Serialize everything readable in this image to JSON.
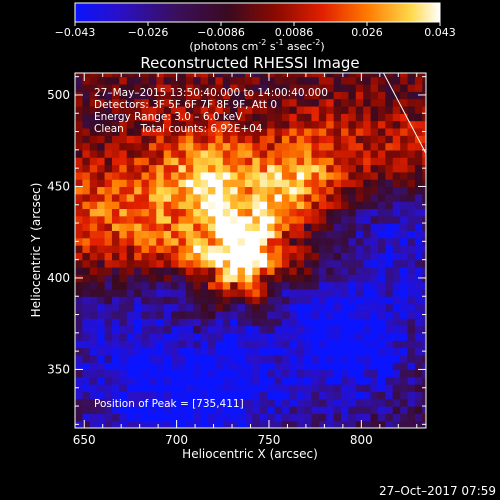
{
  "chart_data": {
    "type": "heatmap",
    "title": "Reconstructed RHESSI Image",
    "xlabel": "Heliocentric X (arcsec)",
    "ylabel": "Heliocentric Y (arcsec)",
    "xlim": [
      645,
      835
    ],
    "ylim": [
      318,
      512
    ],
    "x_ticks": [
      650,
      700,
      750,
      800
    ],
    "y_ticks": [
      350,
      400,
      450,
      500
    ],
    "colorbar": {
      "label_main": "(photons cm",
      "label_exp1": "-2",
      "label_mid": " s",
      "label_exp2": "-1",
      "label_tail": " asec",
      "label_exp3": "-2",
      "label_close": ")",
      "ticks": [
        "−0.043",
        "−0.026",
        "−0.0086",
        "0.0086",
        "0.026",
        "0.043"
      ],
      "range": [
        -0.043,
        0.043
      ],
      "colormap": "blue-purple-red-orange-yellow-white"
    },
    "info_lines": [
      "27–May–2015 13:50:40.000 to 14:00:40.000",
      "Detectors: 3F 5F 6F 7F 8F 9F, Att 0",
      "Energy Range: 3.0 – 6.0 keV",
      "Clean     Total counts: 6.92E+04"
    ],
    "peak_label": "Position of Peak = [735,411]",
    "peak": {
      "x": 735,
      "y": 411,
      "value": 0.043
    },
    "limb_line": [
      [
        812,
        512
      ],
      [
        835,
        468
      ]
    ],
    "timestamp": "27–Oct–2017 07:59"
  }
}
